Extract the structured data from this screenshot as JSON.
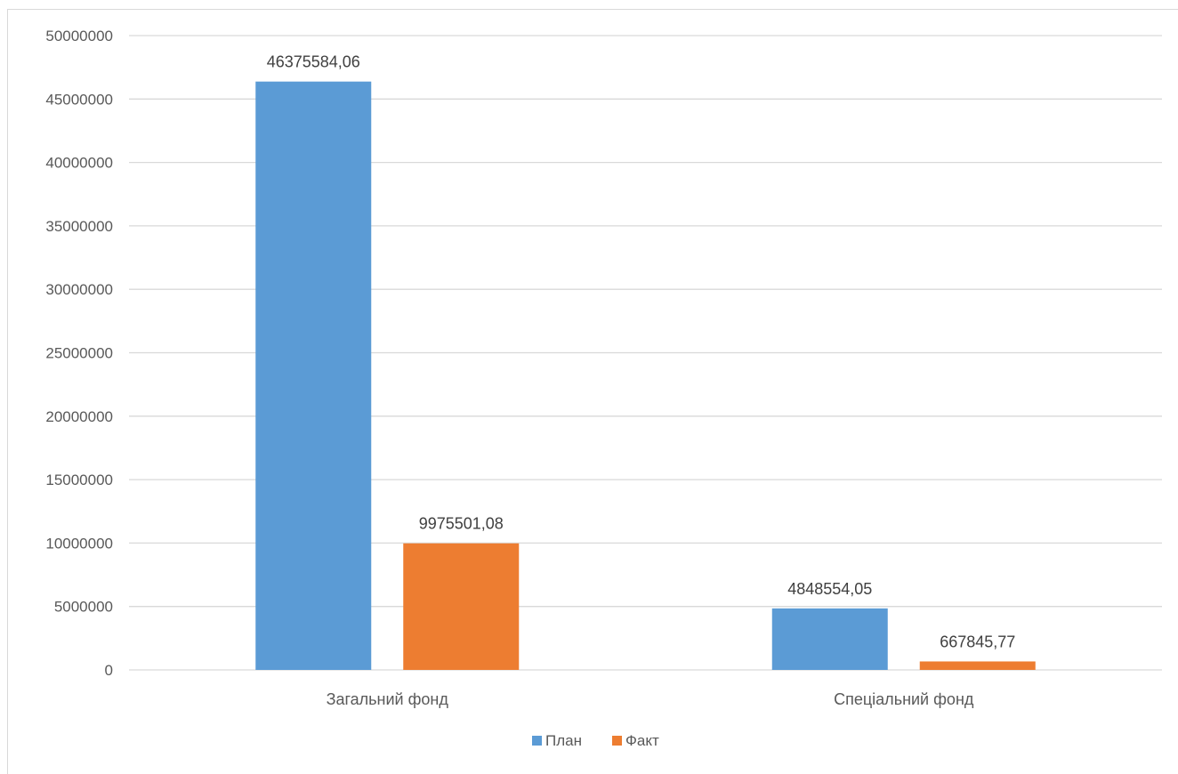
{
  "chart_data": {
    "type": "bar",
    "categories": [
      "Загальний фонд",
      "Спеціальний фонд"
    ],
    "series": [
      {
        "name": "План",
        "color": "#5B9BD5",
        "values": [
          46375584.06,
          4848554.05
        ],
        "labels": [
          "46375584,06",
          "4848554,05"
        ]
      },
      {
        "name": "Факт",
        "color": "#ED7D31",
        "values": [
          9975501.08,
          667845.77
        ],
        "labels": [
          "9975501,08",
          "667845,77"
        ]
      }
    ],
    "ylim": [
      0,
      50000000
    ],
    "yticks": [
      0,
      5000000,
      10000000,
      15000000,
      20000000,
      25000000,
      30000000,
      35000000,
      40000000,
      45000000,
      50000000
    ],
    "ytick_labels": [
      "0",
      "5000000",
      "10000000",
      "15000000",
      "20000000",
      "25000000",
      "30000000",
      "35000000",
      "40000000",
      "45000000",
      "50000000"
    ],
    "grid": true,
    "legend_position": "bottom",
    "title": "",
    "xlabel": "",
    "ylabel": ""
  }
}
